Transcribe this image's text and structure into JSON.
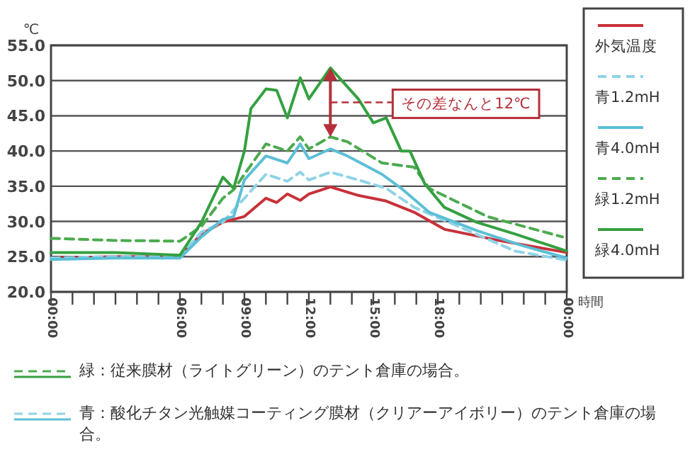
{
  "chart_data": {
    "type": "line",
    "ylabel": "℃",
    "xlabel": "時間",
    "xlim": [
      0,
      24
    ],
    "ylim": [
      20,
      55
    ],
    "yticks": [
      {
        "value": 20,
        "label": "20.0"
      },
      {
        "value": 25,
        "label": "25.0"
      },
      {
        "value": 30,
        "label": "30.0"
      },
      {
        "value": 35,
        "label": "35.0"
      },
      {
        "value": 40,
        "label": "40.0"
      },
      {
        "value": 45,
        "label": "45.0"
      },
      {
        "value": 50,
        "label": "50.0"
      },
      {
        "value": 55,
        "label": "55.0"
      }
    ],
    "xticks": [
      {
        "value": 0,
        "label": "00:00"
      },
      {
        "value": 1,
        "label": null
      },
      {
        "value": 2,
        "label": null
      },
      {
        "value": 3,
        "label": null
      },
      {
        "value": 4,
        "label": null
      },
      {
        "value": 5,
        "label": null
      },
      {
        "value": 6,
        "label": "06:00"
      },
      {
        "value": 7,
        "label": null
      },
      {
        "value": 8,
        "label": null
      },
      {
        "value": 9,
        "label": "09:00"
      },
      {
        "value": 10,
        "label": null
      },
      {
        "value": 11,
        "label": null
      },
      {
        "value": 12,
        "label": "12:00"
      },
      {
        "value": 13,
        "label": null
      },
      {
        "value": 14,
        "label": null
      },
      {
        "value": 15,
        "label": "15:00"
      },
      {
        "value": 16,
        "label": null
      },
      {
        "value": 17,
        "label": null
      },
      {
        "value": 18,
        "label": "18:00"
      },
      {
        "value": 19,
        "label": null
      },
      {
        "value": 20,
        "label": null
      },
      {
        "value": 21,
        "label": null
      },
      {
        "value": 22,
        "label": null
      },
      {
        "value": 23,
        "label": null
      },
      {
        "value": 24,
        "label": "00:00"
      }
    ],
    "grid": "y",
    "legend": "right",
    "marker": "none",
    "series": [
      {
        "name": "外気温度",
        "color": "#c8313a",
        "line_style": "solid",
        "x": [
          0,
          3,
          6,
          7,
          8,
          9,
          10,
          10.5,
          11,
          11.6,
          12,
          13,
          14.3,
          15.6,
          16.9,
          18.3,
          21,
          24
        ],
        "values": [
          24.8,
          25,
          25,
          28.2,
          29.9,
          30.7,
          33.3,
          32.7,
          33.9,
          33,
          33.9,
          34.9,
          33.7,
          32.9,
          31.3,
          28.9,
          27.2,
          25.6
        ]
      },
      {
        "name": "青1.2mH",
        "color": "#8fd3e6",
        "line_style": "dashed",
        "x": [
          0,
          3,
          6,
          7,
          8,
          9,
          10,
          11,
          11.6,
          12,
          13,
          14.3,
          15.6,
          16.9,
          18.5,
          21.6,
          24
        ],
        "values": [
          24.8,
          25,
          25,
          28.5,
          29.9,
          33.3,
          36.7,
          35.7,
          37,
          35.9,
          37,
          35.9,
          34.7,
          32,
          29.9,
          25.8,
          24.5
        ]
      },
      {
        "name": "青4.0mH",
        "color": "#5bbfd6",
        "line_style": "solid",
        "x": [
          0,
          3,
          6,
          7,
          8,
          8.5,
          9,
          10,
          11,
          11.6,
          12,
          13,
          13.8,
          15.4,
          16.3,
          17.6,
          19.8,
          21.9,
          24
        ],
        "values": [
          24.6,
          24.8,
          24.8,
          27.8,
          30.3,
          30.7,
          35.9,
          39.3,
          38.3,
          41,
          38.9,
          40.3,
          39.3,
          36.7,
          34.7,
          31.3,
          28.7,
          26.6,
          24.8
        ]
      },
      {
        "name": "緑1.2mH",
        "color": "#4caa4f",
        "line_style": "dashed",
        "x": [
          0,
          3,
          6,
          7,
          8,
          8.5,
          9,
          10,
          11,
          11.6,
          12,
          13,
          13.8,
          15.4,
          16.9,
          17.6,
          20.3,
          23.8
        ],
        "values": [
          27.6,
          27.3,
          27.2,
          29.3,
          33.3,
          34.5,
          36.7,
          41,
          40,
          42,
          40.3,
          42,
          41.3,
          38.3,
          37.7,
          34.7,
          30.7,
          27.8
        ]
      },
      {
        "name": "緑4.0mH",
        "color": "#35a040",
        "line_style": "solid",
        "x": [
          0,
          3,
          6,
          7,
          8,
          8.5,
          9,
          9.3,
          10,
          10.5,
          11,
          11.6,
          12,
          13,
          14.3,
          15,
          15.6,
          16.3,
          16.7,
          17.4,
          18.3,
          19.8,
          21.6,
          24
        ],
        "values": [
          25.6,
          25.6,
          25.2,
          29.9,
          36.3,
          34.7,
          40,
          46,
          48.8,
          48.6,
          44.7,
          50.4,
          47.4,
          51.8,
          47.4,
          44,
          44.7,
          40,
          40,
          35.3,
          32,
          29.9,
          28.2,
          25.8
        ]
      }
    ],
    "annotations": [
      "その差なんと12℃",
      "緑：従来膜材（ライトグリーン）のテント倉庫の場合。",
      "青：酸化チタン光触媒コーティング膜材（クリアーアイボリー）のテント倉庫の場合。"
    ]
  }
}
